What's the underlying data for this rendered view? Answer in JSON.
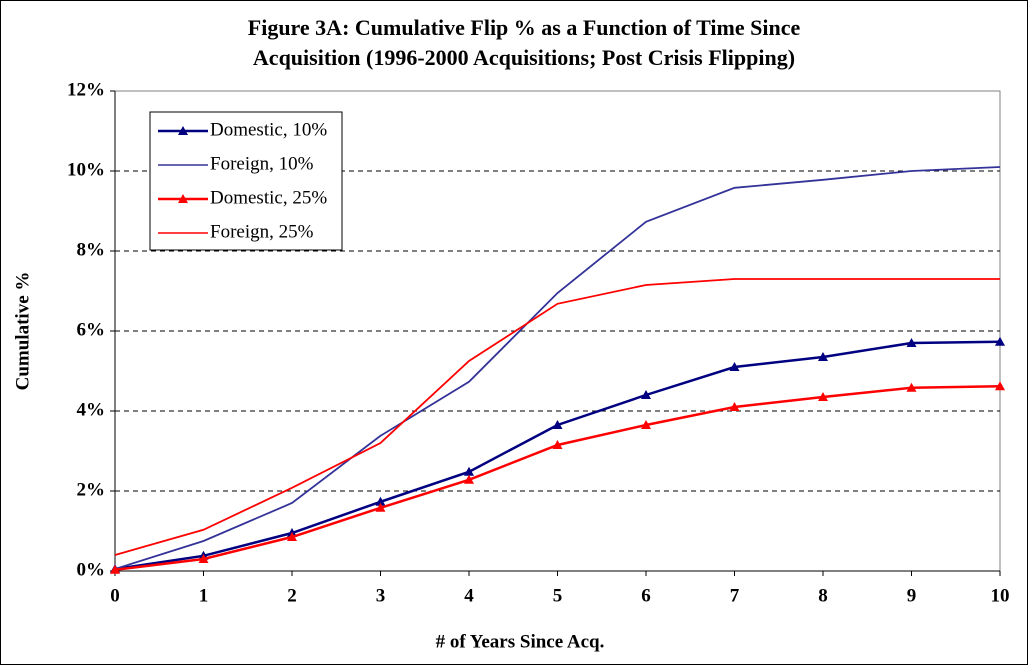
{
  "chart_data": {
    "type": "line",
    "title": [
      "Figure 3A: Cumulative Flip % as a Function of Time Since",
      "Acquisition (1996-2000 Acquisitions; Post Crisis Flipping)"
    ],
    "x_label": "# of Years Since Acq.",
    "y_label": "Cumulative %",
    "x": [
      0,
      1,
      2,
      3,
      4,
      5,
      6,
      7,
      8,
      9,
      10
    ],
    "series": [
      {
        "name": "Domestic, 10%",
        "color": "#000080",
        "marker": "triangle",
        "values": [
          0.05,
          0.38,
          0.95,
          1.73,
          2.48,
          3.65,
          4.4,
          5.1,
          5.35,
          5.7,
          5.73
        ]
      },
      {
        "name": "Foreign, 10%",
        "color": "#333399",
        "marker": "none",
        "values": [
          0.05,
          0.75,
          1.7,
          3.38,
          4.73,
          6.95,
          8.73,
          9.58,
          9.78,
          10.0,
          10.1
        ]
      },
      {
        "name": "Domestic, 25%",
        "color": "#ff0000",
        "marker": "triangle",
        "values": [
          0.03,
          0.3,
          0.85,
          1.58,
          2.28,
          3.15,
          3.65,
          4.1,
          4.35,
          4.58,
          4.62
        ]
      },
      {
        "name": "Foreign, 25%",
        "color": "#ff0000",
        "marker": "none",
        "values": [
          0.4,
          1.03,
          2.08,
          3.2,
          5.25,
          6.68,
          7.15,
          7.3,
          7.3,
          7.3,
          7.3
        ]
      }
    ],
    "xlim": [
      0,
      10
    ],
    "xticks": [
      0,
      1,
      2,
      3,
      4,
      5,
      6,
      7,
      8,
      9,
      10
    ],
    "ylim": [
      0,
      12
    ],
    "yticks": [
      {
        "value": 0,
        "label": "0%"
      },
      {
        "value": 2,
        "label": "2%"
      },
      {
        "value": 4,
        "label": "4%"
      },
      {
        "value": 6,
        "label": "6%"
      },
      {
        "value": 8,
        "label": "8%"
      },
      {
        "value": 10,
        "label": "10%"
      },
      {
        "value": 12,
        "label": "12%"
      }
    ],
    "grid": true,
    "legend": "upper left"
  }
}
